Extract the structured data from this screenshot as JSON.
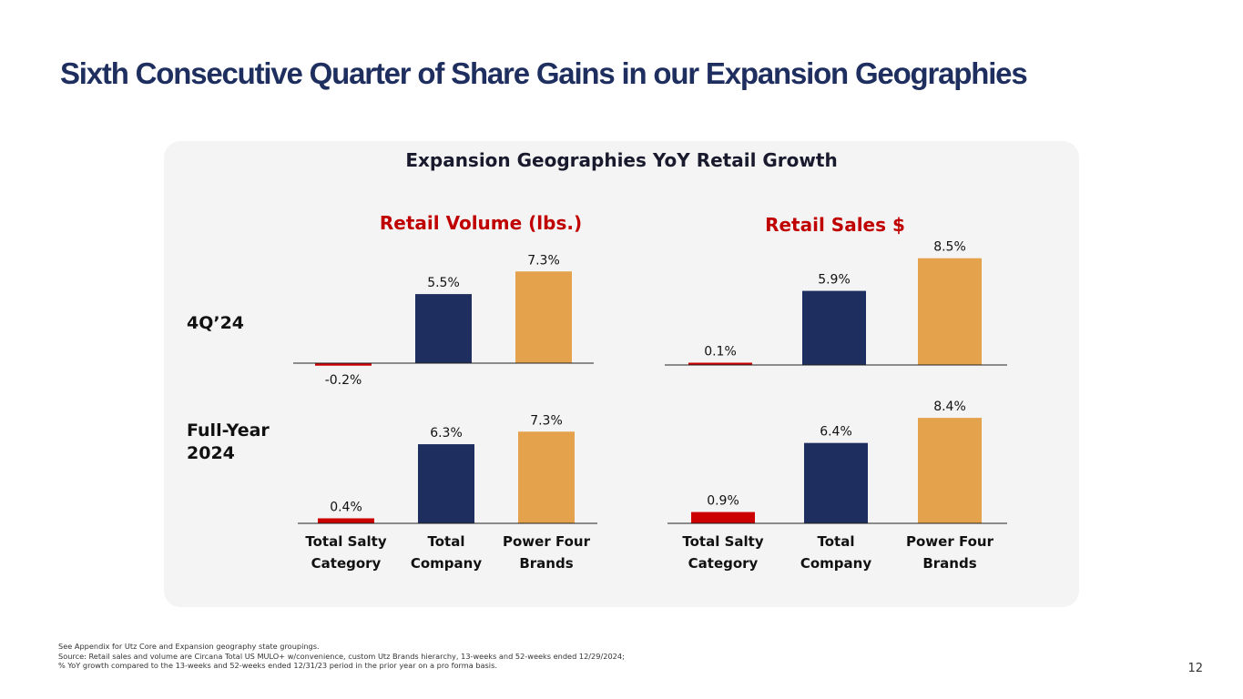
{
  "slide": {
    "title": "Sixth Consecutive Quarter of Share Gains in our Expansion Geographies",
    "page_number": "12"
  },
  "panel": {
    "title": "Expansion Geographies YoY Retail Growth"
  },
  "row_labels": {
    "quarter": "4Q’24",
    "full_year": "Full-Year 2024"
  },
  "chart_data": [
    {
      "type": "bar",
      "title": "Retail Volume (lbs.)",
      "row": "4Q’24",
      "categories": [
        "Total Salty Category",
        "Total Company",
        "Power Four Brands"
      ],
      "values": [
        -0.2,
        5.5,
        7.3
      ],
      "labels": [
        "-0.2%",
        "5.5%",
        "7.3%"
      ],
      "colors": [
        "#cc0000",
        "#1e2f5f",
        "#e4a24c"
      ]
    },
    {
      "type": "bar",
      "title": "Retail Sales $",
      "row": "4Q’24",
      "categories": [
        "Total Salty Category",
        "Total Company",
        "Power Four Brands"
      ],
      "values": [
        0.1,
        5.9,
        8.5
      ],
      "labels": [
        "0.1%",
        "5.9%",
        "8.5%"
      ],
      "colors": [
        "#cc0000",
        "#1e2f5f",
        "#e4a24c"
      ]
    },
    {
      "type": "bar",
      "title": "Retail Volume (lbs.)",
      "row": "Full-Year 2024",
      "categories": [
        "Total Salty Category",
        "Total Company",
        "Power Four Brands"
      ],
      "values": [
        0.4,
        6.3,
        7.3
      ],
      "labels": [
        "0.4%",
        "6.3%",
        "7.3%"
      ],
      "colors": [
        "#cc0000",
        "#1e2f5f",
        "#e4a24c"
      ]
    },
    {
      "type": "bar",
      "title": "Retail Sales $",
      "row": "Full-Year 2024",
      "categories": [
        "Total Salty Category",
        "Total Company",
        "Power Four Brands"
      ],
      "values": [
        0.9,
        6.4,
        8.4
      ],
      "labels": [
        "0.9%",
        "6.4%",
        "8.4%"
      ],
      "colors": [
        "#cc0000",
        "#1e2f5f",
        "#e4a24c"
      ]
    }
  ],
  "column_titles": {
    "volume": "Retail Volume (lbs.)",
    "sales": "Retail Sales $",
    "color": "#c00000"
  },
  "category_labels": [
    [
      "Total Salty",
      "Category"
    ],
    [
      "Total",
      "Company"
    ],
    [
      "Power Four",
      "Brands"
    ]
  ],
  "footnotes": [
    "See Appendix for Utz Core and Expansion geography state groupings.",
    "Source: Retail sales and volume are Circana Total US MULO+ w/convenience, custom Utz Brands hierarchy, 13-weeks and 52-weeks ended 12/29/2024;",
    "% YoY growth compared to the 13-weeks and 52-weeks ended 12/31/23 period in the prior year on a pro forma basis."
  ]
}
